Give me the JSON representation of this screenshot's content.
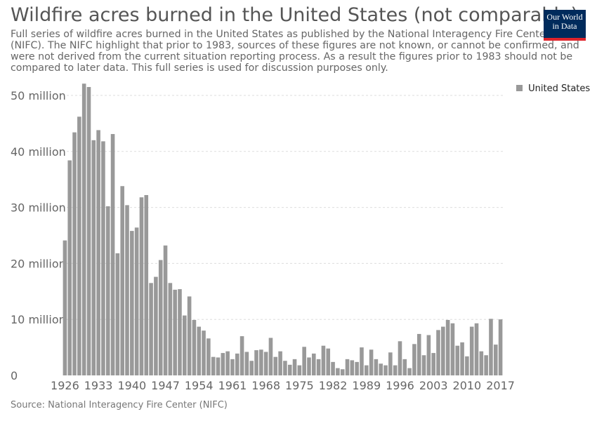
{
  "header": {
    "title": "Wildfire acres burned in the United States (not comparable)",
    "subtitle": "Full series of wildfire acres burned in the United States as published by the National Interagency Fire Center (NIFC). The NIFC highlight that prior to 1983, sources of these figures are not known, or cannot be confirmed, and were not derived from the current situation reporting process. As a result the figures prior to 1983 should not be compared to later data. This full series is used for discussion purposes only."
  },
  "logo": {
    "line1": "Our World",
    "line2": "in Data"
  },
  "source": "Source: National Interagency Fire Center (NIFC)",
  "colors": {
    "bar": "#999999",
    "grid": "#dddddd",
    "logo_bg": "#002b5c",
    "logo_accent": "#e0242b"
  },
  "chart_data": {
    "type": "bar",
    "title": "Wildfire acres burned in the United States (not comparable)",
    "xlabel": "",
    "ylabel": "",
    "ylim": [
      0,
      52000000
    ],
    "grid": true,
    "legend_position": "top-right",
    "y_ticks": [
      {
        "value": 0,
        "label": "0"
      },
      {
        "value": 10000000,
        "label": "10 million"
      },
      {
        "value": 20000000,
        "label": "20 million"
      },
      {
        "value": 30000000,
        "label": "30 million"
      },
      {
        "value": 40000000,
        "label": "40 million"
      },
      {
        "value": 50000000,
        "label": "50 million"
      }
    ],
    "x_ticks": [
      1926,
      1933,
      1940,
      1947,
      1954,
      1961,
      1968,
      1975,
      1982,
      1989,
      1996,
      2003,
      2010,
      2017
    ],
    "categories": [
      1926,
      1927,
      1928,
      1929,
      1930,
      1931,
      1932,
      1933,
      1934,
      1935,
      1936,
      1937,
      1938,
      1939,
      1940,
      1941,
      1942,
      1943,
      1944,
      1945,
      1946,
      1947,
      1948,
      1949,
      1950,
      1951,
      1952,
      1953,
      1954,
      1955,
      1956,
      1957,
      1958,
      1959,
      1960,
      1961,
      1962,
      1963,
      1964,
      1965,
      1966,
      1967,
      1968,
      1969,
      1970,
      1971,
      1972,
      1973,
      1974,
      1975,
      1976,
      1977,
      1978,
      1979,
      1980,
      1981,
      1982,
      1983,
      1984,
      1985,
      1986,
      1987,
      1988,
      1989,
      1990,
      1991,
      1992,
      1993,
      1994,
      1995,
      1996,
      1997,
      1998,
      1999,
      2000,
      2001,
      2002,
      2003,
      2004,
      2005,
      2006,
      2007,
      2008,
      2009,
      2010,
      2011,
      2012,
      2013,
      2014,
      2015,
      2016,
      2017
    ],
    "series": [
      {
        "name": "United States",
        "values": [
          24100000,
          38400000,
          43400000,
          46200000,
          52100000,
          51500000,
          42000000,
          43800000,
          41800000,
          30200000,
          43100000,
          21800000,
          33800000,
          30400000,
          25800000,
          26400000,
          31800000,
          32200000,
          16500000,
          17600000,
          20600000,
          23200000,
          16500000,
          15300000,
          15400000,
          10700000,
          14100000,
          9900000,
          8700000,
          8000000,
          6600000,
          3300000,
          3200000,
          4000000,
          4300000,
          2900000,
          3900000,
          7000000,
          4200000,
          2600000,
          4500000,
          4600000,
          4200000,
          6700000,
          3300000,
          4300000,
          2600000,
          1900000,
          2900000,
          1800000,
          5100000,
          3200000,
          3900000,
          2900000,
          5300000,
          4800000,
          2400000,
          1300000,
          1100000,
          2900000,
          2700000,
          2400000,
          5000000,
          1800000,
          4600000,
          2900000,
          2100000,
          1800000,
          4100000,
          1800000,
          6100000,
          2900000,
          1300000,
          5600000,
          7400000,
          3600000,
          7200000,
          4000000,
          8100000,
          8700000,
          9900000,
          9300000,
          5300000,
          5900000,
          3400000,
          8700000,
          9300000,
          4300000,
          3600000,
          10100000,
          5500000,
          10000000
        ]
      }
    ]
  }
}
